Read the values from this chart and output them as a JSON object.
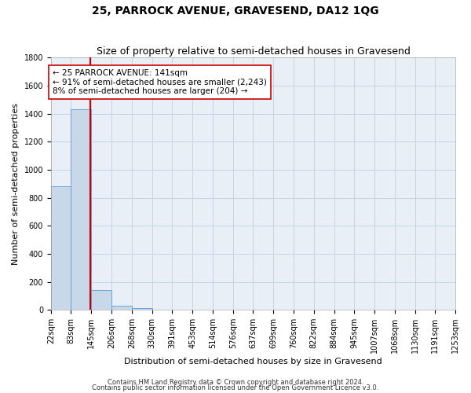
{
  "title": "25, PARROCK AVENUE, GRAVESEND, DA12 1QG",
  "subtitle": "Size of property relative to semi-detached houses in Gravesend",
  "xlabel": "Distribution of semi-detached houses by size in Gravesend",
  "ylabel": "Number of semi-detached properties",
  "bin_edges": [
    22,
    83,
    145,
    206,
    268,
    330,
    391,
    453,
    514,
    576,
    637,
    699,
    760,
    822,
    884,
    945,
    1007,
    1068,
    1130,
    1191,
    1253
  ],
  "bar_heights": [
    880,
    1430,
    140,
    30,
    15,
    0,
    0,
    0,
    0,
    0,
    0,
    0,
    0,
    0,
    0,
    0,
    0,
    0,
    0,
    0
  ],
  "bar_color": "#c8d8e8",
  "bar_edge_color": "#5b9bd5",
  "property_size": 141,
  "red_line_color": "#cc0000",
  "annotation_line1": "← 25 PARROCK AVENUE: 141sqm",
  "annotation_line2": "← 91% of semi-detached houses are smaller (2,243)",
  "annotation_line3": "8% of semi-detached houses are larger (204) →",
  "annotation_box_color": "#ffffff",
  "annotation_border_color": "#cc0000",
  "ylim": [
    0,
    1800
  ],
  "yticks": [
    0,
    200,
    400,
    600,
    800,
    1000,
    1200,
    1400,
    1600,
    1800
  ],
  "tick_labels": [
    "22sqm",
    "83sqm",
    "145sqm",
    "206sqm",
    "268sqm",
    "330sqm",
    "391sqm",
    "453sqm",
    "514sqm",
    "576sqm",
    "637sqm",
    "699sqm",
    "760sqm",
    "822sqm",
    "884sqm",
    "945sqm",
    "1007sqm",
    "1068sqm",
    "1130sqm",
    "1191sqm",
    "1253sqm"
  ],
  "footer1": "Contains HM Land Registry data © Crown copyright and database right 2024.",
  "footer2": "Contains public sector information licensed under the Open Government Licence v3.0.",
  "grid_color": "#c8d4e4",
  "bg_color": "#e8eff6",
  "title_fontsize": 10,
  "subtitle_fontsize": 9,
  "axis_fontsize": 8,
  "tick_fontsize": 7,
  "ylabel_fontsize": 8,
  "annotation_fontsize": 7.5,
  "footer_fontsize": 6
}
